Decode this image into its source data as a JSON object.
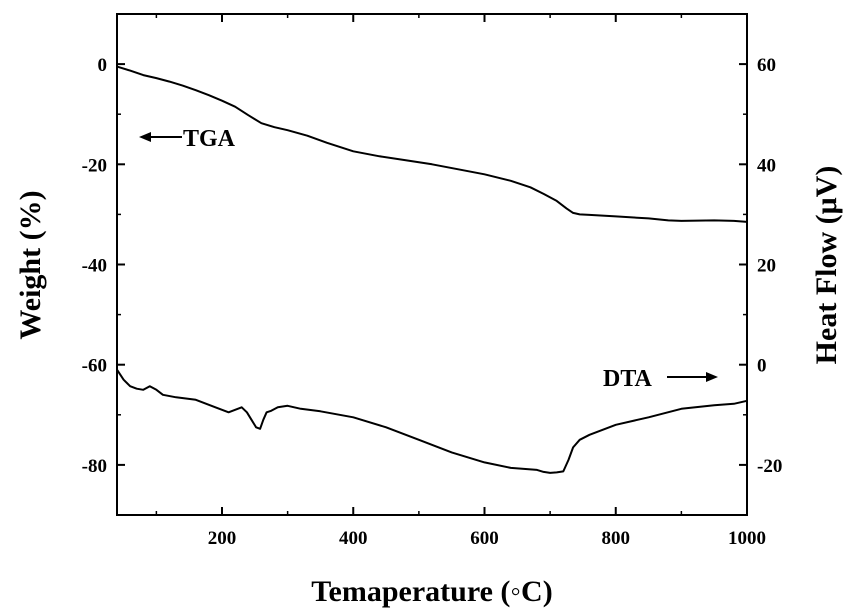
{
  "chart_data": {
    "type": "line",
    "xlabel": "Temaperature (◦C)",
    "ylabel_left": "Weight (%)",
    "ylabel_right": "Heat Flow (μV)",
    "xlim": [
      40,
      1000
    ],
    "ylim_left": [
      -90,
      10
    ],
    "ylim_right": [
      -30,
      70
    ],
    "x_ticks": [
      200,
      400,
      600,
      800,
      1000
    ],
    "y_ticks_left": [
      0,
      -20,
      -40,
      -60,
      -80
    ],
    "y_ticks_right": [
      60,
      40,
      20,
      0,
      -20
    ],
    "annotations": {
      "tga": "TGA",
      "dta": "DTA"
    },
    "series": [
      {
        "name": "TGA",
        "axis": "left",
        "x": [
          40,
          60,
          80,
          100,
          120,
          140,
          160,
          180,
          200,
          220,
          240,
          260,
          280,
          300,
          330,
          360,
          400,
          440,
          480,
          520,
          560,
          600,
          640,
          670,
          690,
          710,
          725,
          735,
          745,
          760,
          800,
          850,
          880,
          900,
          950,
          980,
          1000
        ],
        "values": [
          -0.5,
          -1.3,
          -2.2,
          -2.8,
          -3.5,
          -4.3,
          -5.2,
          -6.2,
          -7.3,
          -8.5,
          -10.2,
          -11.8,
          -12.6,
          -13.2,
          -14.3,
          -15.7,
          -17.4,
          -18.4,
          -19.2,
          -20.0,
          -21.0,
          -22.0,
          -23.3,
          -24.6,
          -25.9,
          -27.3,
          -28.8,
          -29.7,
          -30.0,
          -30.1,
          -30.4,
          -30.8,
          -31.2,
          -31.3,
          -31.2,
          -31.3,
          -31.5
        ]
      },
      {
        "name": "DTA",
        "axis": "right",
        "x": [
          40,
          50,
          60,
          70,
          80,
          90,
          100,
          110,
          130,
          160,
          190,
          210,
          230,
          238,
          245,
          252,
          258,
          263,
          268,
          275,
          285,
          300,
          320,
          350,
          400,
          450,
          500,
          550,
          600,
          640,
          660,
          680,
          690,
          700,
          710,
          720,
          728,
          735,
          745,
          760,
          800,
          850,
          900,
          950,
          980,
          1000
        ],
        "values": [
          -1.0,
          -3.0,
          -4.3,
          -4.8,
          -5.0,
          -4.3,
          -5.0,
          -6.0,
          -6.5,
          -7.0,
          -8.5,
          -9.5,
          -8.5,
          -9.5,
          -11.0,
          -12.5,
          -12.8,
          -11.0,
          -9.5,
          -9.2,
          -8.5,
          -8.2,
          -8.8,
          -9.3,
          -10.5,
          -12.5,
          -15.0,
          -17.5,
          -19.5,
          -20.6,
          -20.8,
          -21.0,
          -21.4,
          -21.6,
          -21.5,
          -21.3,
          -19.0,
          -16.5,
          -15.0,
          -14.0,
          -12.0,
          -10.5,
          -8.8,
          -8.1,
          -7.8,
          -7.2
        ]
      }
    ]
  }
}
